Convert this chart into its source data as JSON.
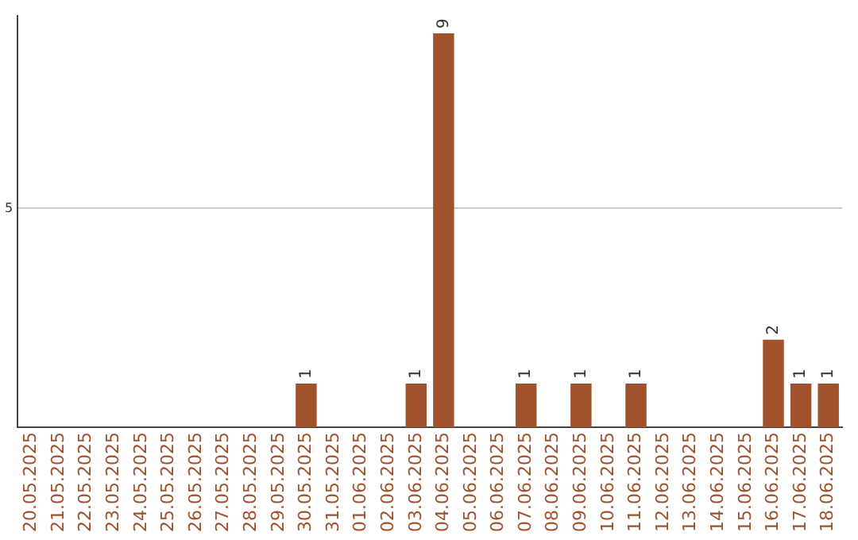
{
  "chart_data": {
    "type": "bar",
    "categories": [
      "20.05.2025",
      "21.05.2025",
      "22.05.2025",
      "23.05.2025",
      "24.05.2025",
      "25.05.2025",
      "26.05.2025",
      "27.05.2025",
      "28.05.2025",
      "29.05.2025",
      "30.05.2025",
      "31.05.2025",
      "01.06.2025",
      "02.06.2025",
      "03.06.2025",
      "04.06.2025",
      "05.06.2025",
      "06.06.2025",
      "07.06.2025",
      "08.06.2025",
      "09.06.2025",
      "10.06.2025",
      "11.06.2025",
      "12.06.2025",
      "13.06.2025",
      "14.06.2025",
      "15.06.2025",
      "16.06.2025",
      "17.06.2025",
      "18.06.2025"
    ],
    "values": [
      0,
      0,
      0,
      0,
      0,
      0,
      0,
      0,
      0,
      0,
      1,
      0,
      0,
      0,
      1,
      9,
      0,
      0,
      1,
      0,
      1,
      0,
      1,
      0,
      0,
      0,
      0,
      2,
      1,
      1
    ],
    "value_labels": [
      null,
      null,
      null,
      null,
      null,
      null,
      null,
      null,
      null,
      null,
      "1",
      null,
      null,
      null,
      "1",
      "9",
      null,
      null,
      "1",
      null,
      "1",
      null,
      "1",
      null,
      null,
      null,
      null,
      "2",
      "1",
      "1"
    ],
    "color": "#a0522d",
    "ylim": [
      0,
      9.4
    ],
    "yticks": [
      5
    ],
    "grid": "y"
  }
}
